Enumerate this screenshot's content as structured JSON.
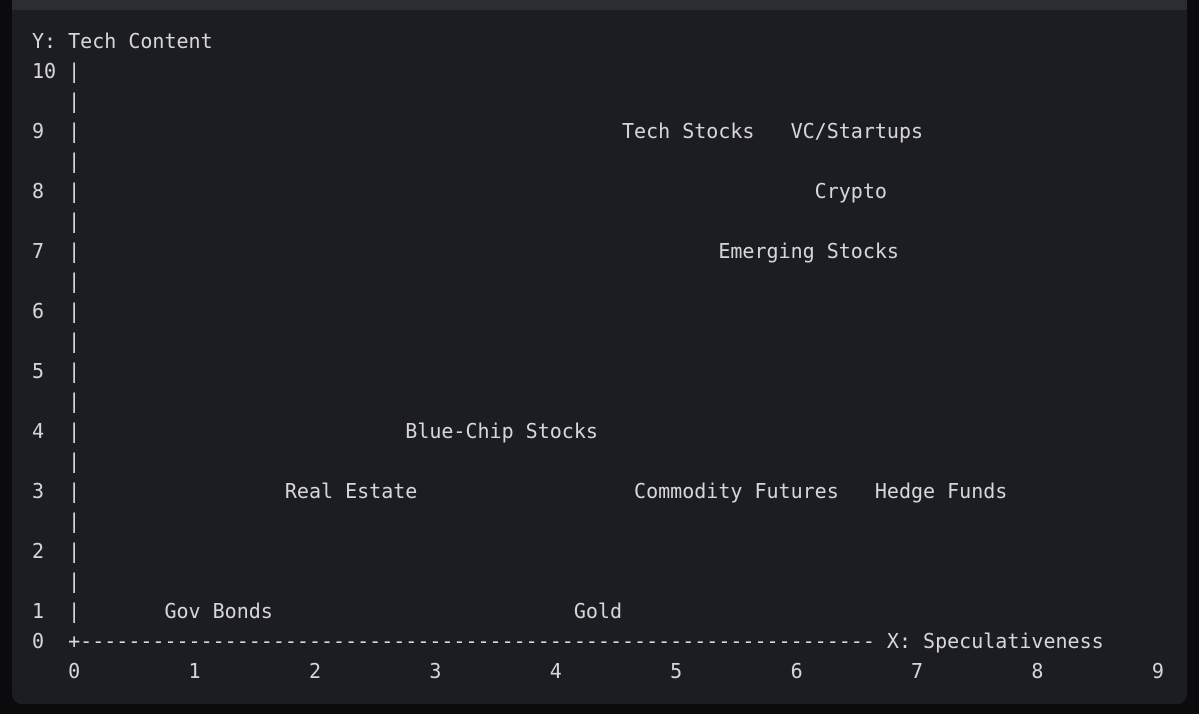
{
  "code_block": {
    "lines": [
      "Y: Tech Content",
      "10 |",
      "   |",
      "9  |                                             Tech Stocks   VC/Startups",
      "   |",
      "8  |                                                             Crypto",
      "   |",
      "7  |                                                     Emerging Stocks",
      "   |",
      "6  |",
      "   |",
      "5  |",
      "   |",
      "4  |                           Blue-Chip Stocks",
      "   |",
      "3  |                 Real Estate                  Commodity Futures   Hedge Funds",
      "   |",
      "2  |",
      "   |",
      "1  |       Gov Bonds                         Gold",
      "0  +------------------------------------------------------------------ X: Speculativeness",
      "   0         1         2         3         4         5         6         7         8         9"
    ]
  }
}
